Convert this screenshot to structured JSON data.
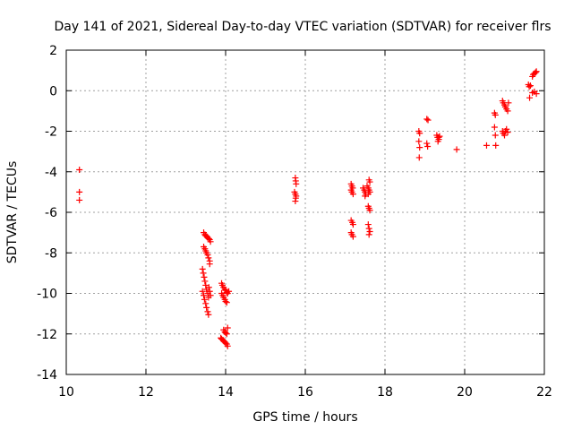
{
  "chart_data": {
    "type": "scatter",
    "title": "Day 141 of 2021, Sidereal Day-to-day VTEC variation (SDTVAR) for receiver flrs",
    "xlabel": "GPS time / hours",
    "ylabel": "SDTVAR / TECUs",
    "xlim": [
      10,
      22
    ],
    "ylim": [
      -14,
      2
    ],
    "xticks": [
      10,
      12,
      14,
      16,
      18,
      20,
      22
    ],
    "yticks": [
      -14,
      -12,
      -10,
      -8,
      -6,
      -4,
      -2,
      0,
      2
    ],
    "grid": true,
    "marker": "+",
    "color": "#ff0000",
    "series": [
      {
        "name": "SDTVAR",
        "points": [
          [
            10.33,
            -3.9
          ],
          [
            10.33,
            -5.0
          ],
          [
            10.33,
            -5.4
          ],
          [
            13.45,
            -7.0
          ],
          [
            13.48,
            -7.1
          ],
          [
            13.5,
            -7.15
          ],
          [
            13.53,
            -7.2
          ],
          [
            13.55,
            -7.25
          ],
          [
            13.58,
            -7.3
          ],
          [
            13.6,
            -7.35
          ],
          [
            13.62,
            -7.45
          ],
          [
            13.45,
            -7.7
          ],
          [
            13.48,
            -7.8
          ],
          [
            13.5,
            -7.9
          ],
          [
            13.52,
            -8.0
          ],
          [
            13.55,
            -8.1
          ],
          [
            13.57,
            -8.25
          ],
          [
            13.6,
            -8.4
          ],
          [
            13.6,
            -8.55
          ],
          [
            13.42,
            -8.8
          ],
          [
            13.44,
            -9.0
          ],
          [
            13.46,
            -9.2
          ],
          [
            13.48,
            -9.4
          ],
          [
            13.5,
            -9.6
          ],
          [
            13.52,
            -9.8
          ],
          [
            13.55,
            -10.0
          ],
          [
            13.57,
            -10.2
          ],
          [
            13.42,
            -9.9
          ],
          [
            13.45,
            -10.1
          ],
          [
            13.47,
            -10.3
          ],
          [
            13.5,
            -10.5
          ],
          [
            13.52,
            -10.7
          ],
          [
            13.55,
            -10.9
          ],
          [
            13.57,
            -11.05
          ],
          [
            13.58,
            -9.7
          ],
          [
            13.6,
            -9.9
          ],
          [
            13.62,
            -10.1
          ],
          [
            13.9,
            -9.5
          ],
          [
            13.92,
            -9.6
          ],
          [
            13.95,
            -9.7
          ],
          [
            13.98,
            -9.8
          ],
          [
            14.0,
            -9.85
          ],
          [
            14.03,
            -9.95
          ],
          [
            14.05,
            -10.0
          ],
          [
            14.08,
            -9.9
          ],
          [
            13.9,
            -10.0
          ],
          [
            13.93,
            -10.1
          ],
          [
            13.95,
            -10.2
          ],
          [
            13.98,
            -10.3
          ],
          [
            14.0,
            -10.4
          ],
          [
            14.03,
            -10.45
          ],
          [
            13.95,
            -11.8
          ],
          [
            13.98,
            -11.9
          ],
          [
            14.0,
            -11.95
          ],
          [
            14.03,
            -12.0
          ],
          [
            14.05,
            -11.7
          ],
          [
            13.88,
            -12.2
          ],
          [
            13.9,
            -12.25
          ],
          [
            13.93,
            -12.3
          ],
          [
            13.95,
            -12.35
          ],
          [
            13.98,
            -12.4
          ],
          [
            14.0,
            -12.45
          ],
          [
            14.03,
            -12.5
          ],
          [
            14.05,
            -12.6
          ],
          [
            15.75,
            -4.3
          ],
          [
            15.76,
            -4.45
          ],
          [
            15.77,
            -4.6
          ],
          [
            15.73,
            -5.0
          ],
          [
            15.75,
            -5.1
          ],
          [
            15.77,
            -5.2
          ],
          [
            15.76,
            -5.3
          ],
          [
            15.75,
            -5.45
          ],
          [
            17.15,
            -4.6
          ],
          [
            17.17,
            -4.7
          ],
          [
            17.19,
            -4.8
          ],
          [
            17.15,
            -4.9
          ],
          [
            17.17,
            -5.0
          ],
          [
            17.2,
            -5.1
          ],
          [
            17.15,
            -6.4
          ],
          [
            17.18,
            -6.5
          ],
          [
            17.2,
            -6.6
          ],
          [
            17.15,
            -7.0
          ],
          [
            17.17,
            -7.1
          ],
          [
            17.2,
            -7.2
          ],
          [
            17.45,
            -4.8
          ],
          [
            17.48,
            -4.9
          ],
          [
            17.5,
            -5.0
          ],
          [
            17.52,
            -5.1
          ],
          [
            17.5,
            -5.2
          ],
          [
            17.55,
            -4.7
          ],
          [
            17.58,
            -4.8
          ],
          [
            17.6,
            -4.9
          ],
          [
            17.62,
            -5.0
          ],
          [
            17.58,
            -5.1
          ],
          [
            17.6,
            -4.4
          ],
          [
            17.62,
            -4.5
          ],
          [
            17.58,
            -5.7
          ],
          [
            17.6,
            -5.8
          ],
          [
            17.62,
            -5.9
          ],
          [
            17.58,
            -6.6
          ],
          [
            17.6,
            -6.8
          ],
          [
            17.62,
            -6.95
          ],
          [
            17.6,
            -7.1
          ],
          [
            18.85,
            -2.0
          ],
          [
            18.87,
            -2.1
          ],
          [
            18.85,
            -2.5
          ],
          [
            18.87,
            -2.8
          ],
          [
            18.86,
            -3.3
          ],
          [
            19.05,
            -1.4
          ],
          [
            19.08,
            -1.45
          ],
          [
            19.05,
            -2.6
          ],
          [
            19.07,
            -2.75
          ],
          [
            19.3,
            -2.2
          ],
          [
            19.32,
            -2.3
          ],
          [
            19.35,
            -2.4
          ],
          [
            19.33,
            -2.5
          ],
          [
            19.35,
            -2.3
          ],
          [
            19.37,
            -2.25
          ],
          [
            19.8,
            -2.9
          ],
          [
            20.55,
            -2.7
          ],
          [
            20.75,
            -1.1
          ],
          [
            20.77,
            -1.2
          ],
          [
            20.75,
            -1.8
          ],
          [
            20.77,
            -2.2
          ],
          [
            20.78,
            -2.7
          ],
          [
            20.95,
            -0.5
          ],
          [
            20.97,
            -0.6
          ],
          [
            21.0,
            -0.7
          ],
          [
            21.02,
            -0.8
          ],
          [
            21.05,
            -0.9
          ],
          [
            21.08,
            -1.0
          ],
          [
            21.1,
            -0.6
          ],
          [
            20.95,
            -2.0
          ],
          [
            20.97,
            -2.1
          ],
          [
            21.0,
            -2.2
          ],
          [
            21.02,
            -2.0
          ],
          [
            21.05,
            -1.9
          ],
          [
            21.08,
            -2.05
          ],
          [
            21.6,
            0.3
          ],
          [
            21.62,
            0.2
          ],
          [
            21.65,
            0.25
          ],
          [
            21.63,
            -0.35
          ],
          [
            21.7,
            0.7
          ],
          [
            21.72,
            0.8
          ],
          [
            21.75,
            0.85
          ],
          [
            21.78,
            0.9
          ],
          [
            21.8,
            0.95
          ],
          [
            21.7,
            -0.1
          ],
          [
            21.75,
            -0.05
          ],
          [
            21.8,
            -0.15
          ]
        ]
      }
    ]
  }
}
